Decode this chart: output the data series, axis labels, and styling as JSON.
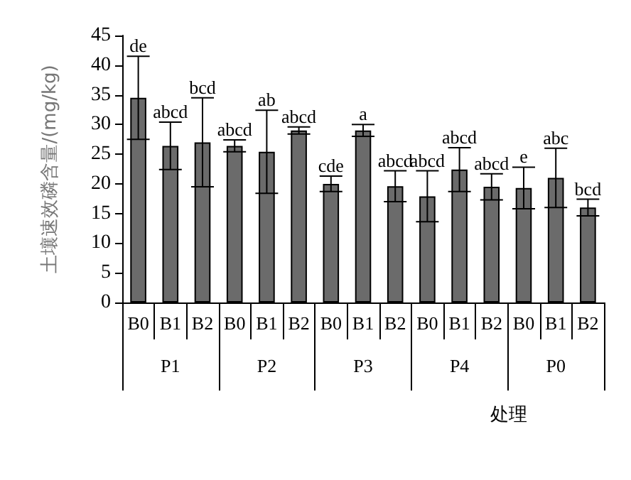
{
  "chart_data": {
    "type": "bar",
    "xlabel": "处理",
    "ylabel": "土壤速效磷含量/(mg/kg)",
    "categories": [
      "B0",
      "B1",
      "B2",
      "B0",
      "B1",
      "B2",
      "B0",
      "B1",
      "B2",
      "B0",
      "B1",
      "B2",
      "B0",
      "B1",
      "B2"
    ],
    "values": [
      34.5,
      26.4,
      27,
      26.4,
      25.4,
      29,
      20,
      29,
      19.6,
      17.9,
      22.4,
      19.5,
      19.3,
      21,
      16
    ],
    "errors": [
      7,
      4,
      7.5,
      1,
      7,
      0.6,
      1.3,
      1,
      2.6,
      4.3,
      3.7,
      2.2,
      3.5,
      5,
      1.4
    ],
    "value_labels": [
      "de",
      "abcd",
      "bcd",
      "abcd",
      "ab",
      "abcd",
      "cde",
      "a",
      "abcd",
      "abcd",
      "abcd",
      "abcd",
      "e",
      "abc",
      "bcd"
    ],
    "color": "#6b6b6b",
    "annotations": [
      "P1",
      "P2",
      "P3",
      "P4",
      "P0"
    ],
    "ylim": [
      0,
      45
    ],
    "yticks": [
      0,
      5,
      10,
      15,
      20,
      25,
      30,
      35,
      40,
      45
    ],
    "grid": false
  }
}
